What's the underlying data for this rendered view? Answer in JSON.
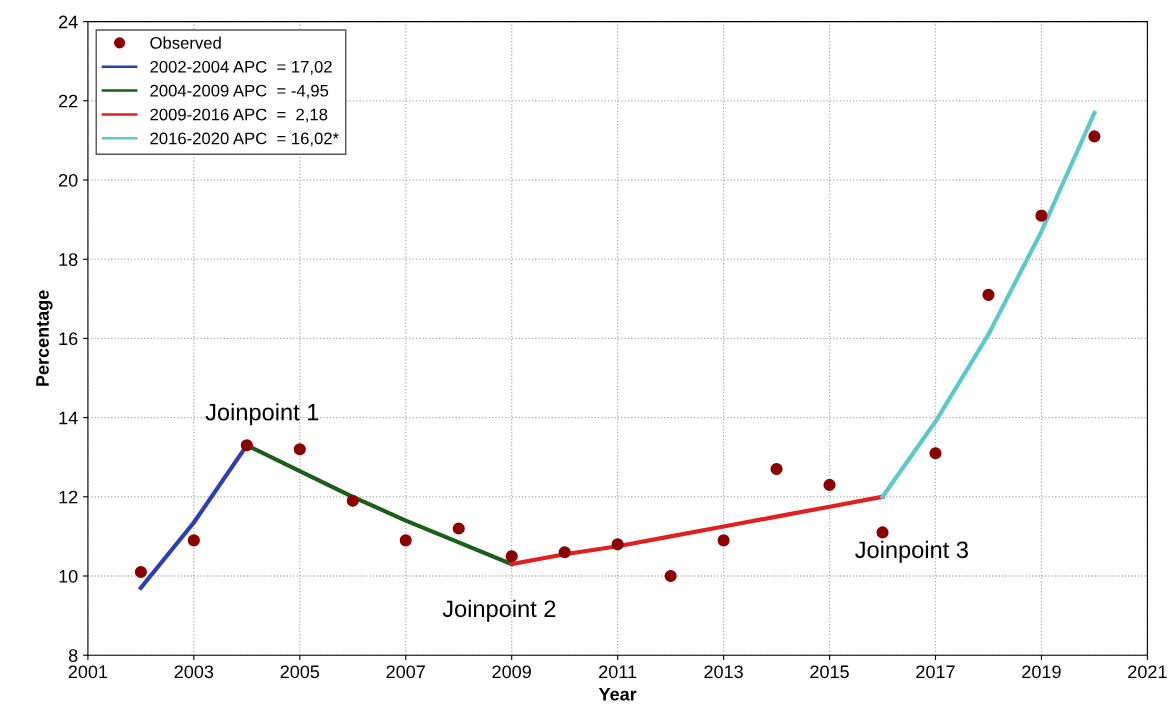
{
  "chart_data": {
    "type": "line",
    "xlabel": "Year",
    "ylabel": "Percentage",
    "xlim": [
      2001,
      2021
    ],
    "xticks": [
      2001,
      2003,
      2005,
      2007,
      2009,
      2011,
      2013,
      2015,
      2017,
      2019,
      2021
    ],
    "ylim": [
      8,
      24
    ],
    "yticks": [
      8,
      10,
      12,
      14,
      16,
      18,
      20,
      22,
      24
    ],
    "grid": true,
    "legend": "top left",
    "series": [
      {
        "name": "Observed",
        "type": "scatter",
        "marker": "circle",
        "color": "#8b0000",
        "x": [
          2002,
          2003,
          2004,
          2005,
          2006,
          2007,
          2008,
          2009,
          2010,
          2011,
          2012,
          2013,
          2014,
          2015,
          2016,
          2017,
          2018,
          2019,
          2020
        ],
        "values": [
          10.1,
          10.9,
          13.3,
          13.2,
          11.9,
          10.9,
          11.2,
          10.5,
          10.6,
          10.8,
          10.0,
          10.9,
          12.7,
          12.3,
          11.1,
          13.1,
          17.1,
          19.1,
          21.1
        ]
      },
      {
        "name": "2002-2004 APC  = 17,02",
        "color": "#2b3fb0",
        "x": [
          2002,
          2003,
          2004
        ],
        "values": [
          9.7,
          11.35,
          13.3
        ]
      },
      {
        "name": "2004-2009 APC  = -4,95",
        "color": "#1a5e1a",
        "x": [
          2004,
          2005,
          2006,
          2007,
          2008,
          2009
        ],
        "values": [
          13.3,
          12.65,
          12.0,
          11.4,
          10.85,
          10.3
        ]
      },
      {
        "name": "2009-2016 APC  =  2,18",
        "color": "#e02020",
        "x": [
          2009,
          2010,
          2011,
          2012,
          2013,
          2014,
          2015,
          2016
        ],
        "values": [
          10.3,
          10.55,
          10.75,
          11.0,
          11.25,
          11.5,
          11.75,
          12.0
        ]
      },
      {
        "name": "2016-2020 APC  = 16,02*",
        "color": "#5cc8c8",
        "x": [
          2016,
          2017,
          2018,
          2019,
          2020
        ],
        "values": [
          12.0,
          13.9,
          16.1,
          18.7,
          21.7
        ]
      }
    ],
    "annotations": [
      {
        "text": "Joinpoint 1",
        "x": 2004,
        "y": 13.3
      },
      {
        "text": "Joinpoint 2",
        "x": 2009,
        "y": 10.3
      },
      {
        "text": "Joinpoint 3",
        "x": 2016,
        "y": 12.0
      }
    ]
  }
}
